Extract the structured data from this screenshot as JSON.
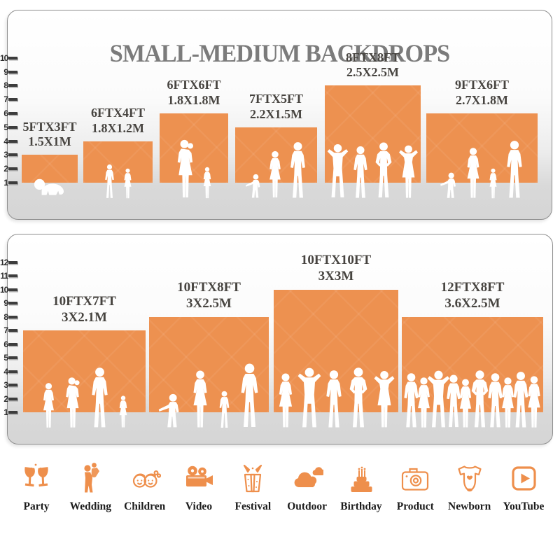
{
  "title": "SMALL-MEDIUM BACKDROPS",
  "colors": {
    "accent": "#ED9150",
    "title_gray": "#7B7B7B",
    "label_dark": "#474440"
  },
  "chart_data": [
    {
      "type": "bar",
      "panel": "small-medium-backdrops",
      "yticks": [
        1,
        2,
        3,
        4,
        5,
        6,
        7,
        8,
        9,
        10
      ],
      "bars": [
        {
          "size_ft": "5FTX3FT",
          "size_m": "1.5X1M",
          "width_ft": 5,
          "height_ft": 3
        },
        {
          "size_ft": "6FTX4FT",
          "size_m": "1.8X1.2M",
          "width_ft": 6,
          "height_ft": 4
        },
        {
          "size_ft": "6FTX6FT",
          "size_m": "1.8X1.8M",
          "width_ft": 6,
          "height_ft": 6
        },
        {
          "size_ft": "7FTX5FT",
          "size_m": "2.2X1.5M",
          "width_ft": 7,
          "height_ft": 5
        },
        {
          "size_ft": "8FTX8FT",
          "size_m": "2.5X2.5M",
          "width_ft": 8,
          "height_ft": 8
        },
        {
          "size_ft": "9FTX6FT",
          "size_m": "2.7X1.8M",
          "width_ft": 9,
          "height_ft": 6
        }
      ]
    },
    {
      "type": "bar",
      "panel": "medium-large-backdrops",
      "yticks": [
        1,
        2,
        3,
        4,
        5,
        6,
        7,
        8,
        9,
        10,
        11,
        12
      ],
      "bars": [
        {
          "size_ft": "10FTX7FT",
          "size_m": "3X2.1M",
          "width_ft": 10,
          "height_ft": 7
        },
        {
          "size_ft": "10FTX8FT",
          "size_m": "3X2.5M",
          "width_ft": 10,
          "height_ft": 8
        },
        {
          "size_ft": "10FTX10FT",
          "size_m": "3X3M",
          "width_ft": 10,
          "height_ft": 10
        },
        {
          "size_ft": "12FTX8FT",
          "size_m": "3.6X2.5M",
          "width_ft": 12,
          "height_ft": 8
        }
      ]
    }
  ],
  "categories": [
    {
      "label": "Party",
      "icon": "party-icon"
    },
    {
      "label": "Wedding",
      "icon": "wedding-icon"
    },
    {
      "label": "Children",
      "icon": "children-icon"
    },
    {
      "label": "Video",
      "icon": "video-icon"
    },
    {
      "label": "Festival",
      "icon": "festival-icon"
    },
    {
      "label": "Outdoor",
      "icon": "outdoor-icon"
    },
    {
      "label": "Birthday",
      "icon": "birthday-icon"
    },
    {
      "label": "Product",
      "icon": "product-icon"
    },
    {
      "label": "Newborn",
      "icon": "newborn-icon"
    },
    {
      "label": "YouTube",
      "icon": "youtube-icon"
    }
  ]
}
